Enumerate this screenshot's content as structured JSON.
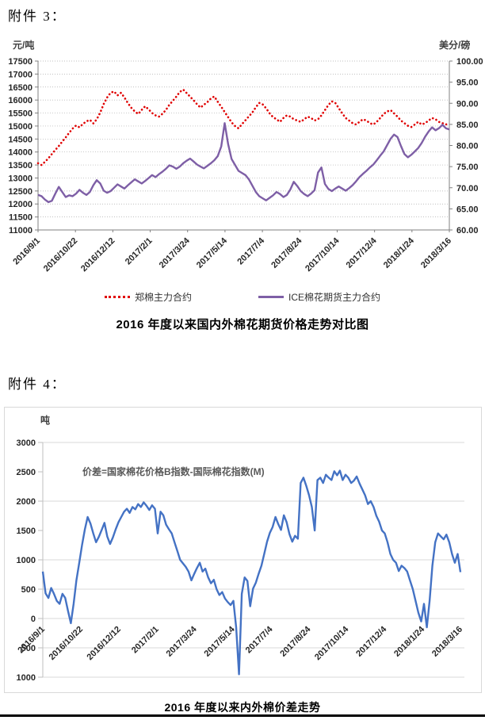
{
  "page": {
    "attachment3_label": "附件 3：",
    "attachment4_label": "附件 4："
  },
  "chart_data": [
    {
      "type": "line",
      "title": "2016 年度以来国内外棉花期货价格走势对比图",
      "x_tick_labels": [
        "2016/9/1",
        "2016/10/22",
        "2016/12/12",
        "2017/2/1",
        "2017/3/24",
        "2017/5/14",
        "2017/7/4",
        "2017/8/24",
        "2017/10/14",
        "2017/12/4",
        "2018/1/24",
        "2018/3/16"
      ],
      "left_axis": {
        "unit": "元/吨",
        "min": 11000,
        "max": 17500,
        "step": 500
      },
      "right_axis": {
        "unit": "美分/磅",
        "min": 60,
        "max": 100,
        "step": 5,
        "decimals": 2
      },
      "grid": "dotted",
      "legend_position": "bottom",
      "series": [
        {
          "name": "郑棉主力合约",
          "axis": "left",
          "style": "dotted",
          "color": "#e00000",
          "values": [
            13570,
            13500,
            13620,
            13760,
            13920,
            14080,
            14230,
            14400,
            14560,
            14740,
            14900,
            15020,
            14950,
            15080,
            15180,
            15240,
            15100,
            15260,
            15520,
            15850,
            16100,
            16280,
            16330,
            16180,
            16280,
            16100,
            15880,
            15700,
            15560,
            15460,
            15620,
            15760,
            15640,
            15500,
            15410,
            15360,
            15470,
            15620,
            15820,
            15970,
            16130,
            16310,
            16400,
            16270,
            16130,
            15990,
            15840,
            15710,
            15820,
            15920,
            16060,
            16140,
            15930,
            15740,
            15540,
            15340,
            15140,
            15000,
            14910,
            15070,
            15220,
            15370,
            15520,
            15720,
            15890,
            15830,
            15680,
            15490,
            15340,
            15260,
            15160,
            15310,
            15410,
            15360,
            15260,
            15210,
            15160,
            15260,
            15360,
            15310,
            15210,
            15260,
            15410,
            15610,
            15810,
            15950,
            15890,
            15690,
            15490,
            15310,
            15210,
            15110,
            15060,
            15160,
            15260,
            15210,
            15110,
            15060,
            15160,
            15310,
            15460,
            15560,
            15610,
            15490,
            15360,
            15210,
            15110,
            15010,
            14960,
            15060,
            15160,
            15060,
            15110,
            15210,
            15310,
            15260,
            15160,
            15110,
            15060,
            15090
          ]
        },
        {
          "name": "ICE棉花期货主力合约",
          "axis": "right",
          "style": "solid",
          "color": "#7e5fa6",
          "values": [
            68.3,
            68.0,
            67.2,
            66.6,
            66.9,
            68.6,
            70.2,
            69.0,
            67.8,
            68.2,
            68.0,
            68.6,
            69.5,
            68.8,
            68.3,
            69.0,
            70.6,
            71.8,
            71.0,
            69.3,
            68.8,
            69.2,
            70.0,
            70.8,
            70.3,
            69.8,
            70.6,
            71.3,
            72.0,
            71.5,
            71.0,
            71.6,
            72.3,
            73.0,
            72.5,
            73.2,
            73.8,
            74.5,
            75.3,
            75.0,
            74.5,
            75.0,
            75.8,
            76.4,
            76.9,
            76.2,
            75.5,
            75.0,
            74.6,
            75.2,
            75.8,
            76.5,
            77.5,
            79.8,
            85.3,
            80.3,
            76.8,
            75.4,
            74.0,
            73.5,
            73.0,
            72.0,
            70.5,
            69.0,
            68.0,
            67.5,
            67.0,
            67.6,
            68.2,
            69.0,
            68.5,
            67.8,
            68.3,
            69.6,
            71.4,
            70.4,
            69.2,
            68.5,
            68.0,
            68.6,
            69.4,
            73.6,
            74.8,
            70.9,
            69.7,
            69.2,
            69.8,
            70.3,
            69.8,
            69.3,
            69.9,
            70.6,
            71.5,
            72.5,
            73.3,
            74.0,
            74.8,
            75.5,
            76.5,
            77.6,
            78.6,
            80.1,
            81.6,
            82.6,
            82.0,
            79.9,
            78.0,
            77.2,
            77.8,
            78.6,
            79.4,
            80.6,
            82.1,
            83.3,
            84.3,
            83.6,
            84.1,
            84.9,
            84.1,
            83.8
          ]
        }
      ]
    },
    {
      "type": "line",
      "title": "2016 年度以来内外棉价差走势",
      "annotation": "价差=国家棉花价格B指数-国际棉花指数(M)",
      "x_tick_labels": [
        "2016/9/1",
        "2016/10/22",
        "2016/12/12",
        "2017/2/1",
        "2017/3/24",
        "2017/5/14",
        "2017/7/4",
        "2017/8/24",
        "2017/10/14",
        "2017/12/4",
        "2018/1/24",
        "2018/3/16"
      ],
      "y_axis": {
        "unit": "吨",
        "min": -1000,
        "max": 3000,
        "step": 500,
        "negative_label_color": "#ff0000"
      },
      "grid": "solid",
      "series": [
        {
          "name": "价差",
          "style": "solid",
          "color": "#4472c4",
          "values": [
            800,
            430,
            350,
            520,
            420,
            300,
            250,
            420,
            350,
            130,
            -80,
            250,
            650,
            950,
            1250,
            1520,
            1730,
            1620,
            1450,
            1300,
            1390,
            1510,
            1630,
            1400,
            1270,
            1380,
            1520,
            1640,
            1730,
            1820,
            1870,
            1800,
            1900,
            1860,
            1950,
            1900,
            1980,
            1920,
            1850,
            1930,
            1870,
            1450,
            1820,
            1760,
            1600,
            1520,
            1450,
            1300,
            1150,
            1000,
            940,
            880,
            800,
            650,
            760,
            860,
            950,
            800,
            850,
            700,
            600,
            660,
            500,
            400,
            450,
            340,
            280,
            230,
            300,
            -150,
            -950,
            420,
            700,
            640,
            210,
            510,
            610,
            760,
            900,
            1100,
            1310,
            1460,
            1560,
            1730,
            1610,
            1510,
            1760,
            1640,
            1440,
            1310,
            1410,
            1360,
            2310,
            2400,
            2260,
            2100,
            1900,
            1500,
            2360,
            2400,
            2310,
            2450,
            2400,
            2360,
            2510,
            2440,
            2520,
            2360,
            2450,
            2400,
            2310,
            2350,
            2420,
            2300,
            2200,
            2100,
            1950,
            2000,
            1900,
            1750,
            1650,
            1500,
            1450,
            1300,
            1100,
            1000,
            950,
            810,
            900,
            860,
            800,
            650,
            500,
            300,
            100,
            -50,
            250,
            -150,
            300,
            900,
            1300,
            1450,
            1400,
            1350,
            1430,
            1300,
            1100,
            950,
            1100,
            790
          ]
        }
      ]
    }
  ]
}
